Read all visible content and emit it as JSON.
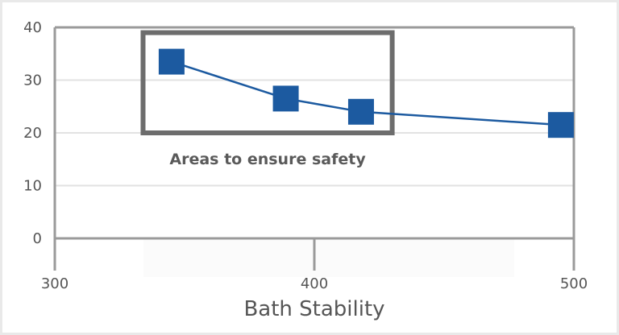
{
  "chart_data": {
    "type": "line",
    "title": "",
    "xlabel": "Bath Stability",
    "ylabel": "",
    "xlim": [
      300,
      500
    ],
    "ylim": [
      0,
      40
    ],
    "x_ticks": [
      300,
      400,
      500
    ],
    "y_ticks": [
      0,
      10,
      20,
      30,
      40
    ],
    "grid": true,
    "series": [
      {
        "x": [
          345,
          389,
          418,
          495
        ],
        "y": [
          33.5,
          26.5,
          24,
          21.5
        ]
      }
    ],
    "annotations": [
      {
        "type": "box",
        "x_range": [
          334,
          430
        ],
        "y_range": [
          20,
          39
        ],
        "text": "Areas to ensure safety"
      }
    ],
    "colors": {
      "series": "#1c5aa0",
      "axis": "#9a9a9a",
      "grid": "#e2e2e2",
      "box": "#6d6d6d",
      "background": "#ffffff"
    }
  }
}
